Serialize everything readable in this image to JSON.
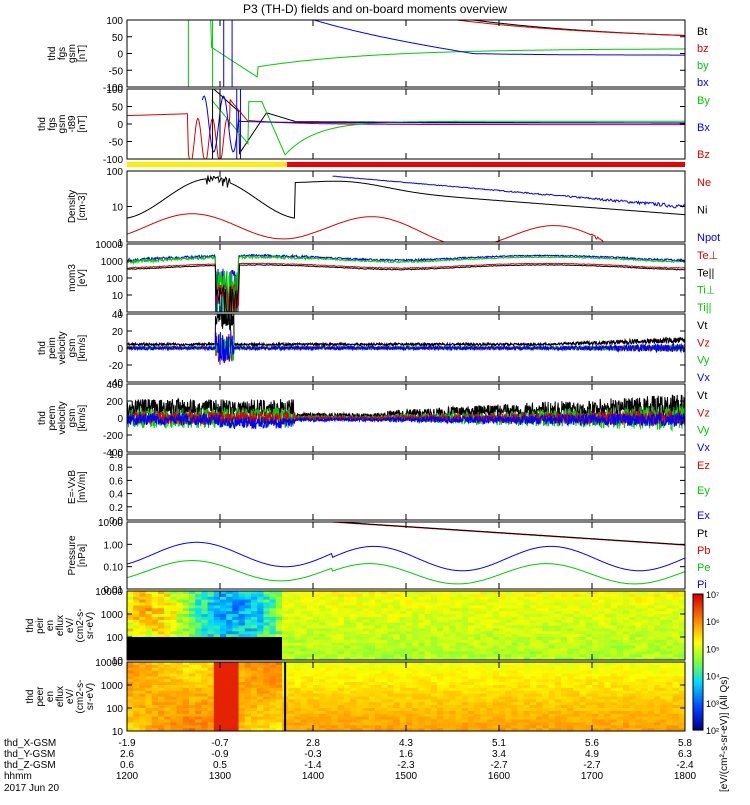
{
  "title": "P3 (TH-D) fields and on-board moments overview",
  "colors": {
    "black": "#000000",
    "red": "#dd0000",
    "green": "#00cc00",
    "blue": "#0000ff",
    "yellow": "#ffee00",
    "barRed": "#ee0000"
  },
  "chart_data": [
    {
      "type": "line",
      "id": "fgs_gsm",
      "ylabel": [
        "thd",
        "fgs",
        "gsm",
        "[nT]"
      ],
      "yticks": [
        "100",
        "50",
        "0",
        "-50",
        "-100"
      ],
      "ylim": [
        -100,
        100
      ],
      "legend": [
        {
          "text": "Bt",
          "color": "black"
        },
        {
          "text": "bz",
          "color": "red"
        },
        {
          "text": "by",
          "color": "green"
        },
        {
          "text": "bx",
          "color": "blue"
        }
      ]
    },
    {
      "type": "line",
      "id": "fgs_gsm_t89",
      "ylabel": [
        "thd",
        "fgs",
        "gsm",
        "-t89",
        "[nT]"
      ],
      "yticks": [
        "100",
        "50",
        "0",
        "-50",
        "-100"
      ],
      "ylim": [
        -125,
        125
      ],
      "legend": [
        {
          "text": "By",
          "color": "green"
        },
        {
          "text": "Bx",
          "color": "blue"
        },
        {
          "text": "Bz",
          "color": "red"
        }
      ]
    },
    {
      "type": "line",
      "id": "density",
      "ylabel": [
        "Density",
        "[cm-3]"
      ],
      "yticks": [
        "100",
        "10",
        "1"
      ],
      "ylim": [
        0.3,
        200
      ],
      "log": true,
      "legend": [
        {
          "text": "Ne",
          "color": "red"
        },
        {
          "text": "Ni",
          "color": "black"
        },
        {
          "text": "Npot",
          "color": "blue"
        }
      ]
    },
    {
      "type": "line",
      "id": "temp",
      "ylabel": [
        "mom3",
        "[eV]"
      ],
      "yticks": [
        "10000",
        "1000",
        "100",
        "10",
        "1"
      ],
      "ylim": [
        1,
        10000
      ],
      "log": true,
      "legend": [
        {
          "text": "Te⊥",
          "color": "red"
        },
        {
          "text": "Te||",
          "color": "black"
        },
        {
          "text": "Ti⊥",
          "color": "green"
        },
        {
          "text": "Ti||",
          "color": "green"
        }
      ]
    },
    {
      "type": "line",
      "id": "peim_velocity",
      "ylabel": [
        "thd",
        "peim",
        "velocity",
        "gsm",
        "[km/s]"
      ],
      "yticks": [
        "40",
        "20",
        "0",
        "-20",
        "-40"
      ],
      "ylim": [
        -40,
        40
      ],
      "legend": [
        {
          "text": "Vt",
          "color": "black"
        },
        {
          "text": "Vz",
          "color": "red"
        },
        {
          "text": "Vy",
          "color": "green"
        },
        {
          "text": "Vx",
          "color": "blue"
        }
      ]
    },
    {
      "type": "line",
      "id": "peem_velocity",
      "ylabel": [
        "thd",
        "peem",
        "velocity",
        "gsm",
        "[km/s]"
      ],
      "yticks": [
        "400",
        "200",
        "0",
        "-200",
        "-400"
      ],
      "ylim": [
        -400,
        400
      ],
      "legend": [
        {
          "text": "Vt",
          "color": "black"
        },
        {
          "text": "Vz",
          "color": "red"
        },
        {
          "text": "Vy",
          "color": "green"
        },
        {
          "text": "Vx",
          "color": "blue"
        }
      ]
    },
    {
      "type": "line",
      "id": "efield",
      "ylabel": [
        "E=-VxB",
        "[mV/m]"
      ],
      "yticks": [
        "1.0",
        "0.8",
        "0.6",
        "0.4",
        "0.2",
        "0.0"
      ],
      "ylim": [
        0,
        1
      ],
      "legend": [
        {
          "text": "Ez",
          "color": "red"
        },
        {
          "text": "Ey",
          "color": "green"
        },
        {
          "text": "Ex",
          "color": "blue"
        }
      ]
    },
    {
      "type": "line",
      "id": "pressure",
      "ylabel": [
        "Pressure",
        "[nPa]"
      ],
      "yticks": [
        "10.00",
        "1.00",
        "0.10",
        "0.01"
      ],
      "ylim": [
        0.01,
        20
      ],
      "log": true,
      "legend": [
        {
          "text": "Pt",
          "color": "black"
        },
        {
          "text": "Pb",
          "color": "red"
        },
        {
          "text": "Pe",
          "color": "green"
        },
        {
          "text": "Pi",
          "color": "blue"
        }
      ]
    },
    {
      "type": "heatmap",
      "id": "peir_en",
      "ylabel": [
        "thd",
        "peir",
        "en",
        "eflux",
        "eV/",
        "(cm2-s-",
        "sr-eV)"
      ],
      "yticks": [
        "10000",
        "1000",
        "100",
        "10"
      ]
    },
    {
      "type": "heatmap",
      "id": "peer_en",
      "ylabel": [
        "thd",
        "peer",
        "en",
        "eflux",
        "eV/",
        "(cm2-s-",
        "sr-eV)"
      ],
      "yticks": [
        "10000",
        "1000",
        "100",
        "10"
      ]
    }
  ],
  "colorbar": {
    "ticks": [
      "10⁷",
      "10⁶",
      "10⁵",
      "10⁴",
      "10³",
      "10²"
    ],
    "label": "[eV/(cm²-s-sr-eV)] (All Qs)"
  },
  "xaxis": {
    "rows": [
      {
        "label": "thd_X-GSM",
        "values": [
          "-1.9",
          "-0.7",
          "2.8",
          "4.3",
          "5.1",
          "5.6",
          "5.8"
        ]
      },
      {
        "label": "thd_Y-GSM",
        "values": [
          "2.6",
          "-0.9",
          "-0.3",
          "1.6",
          "3.4",
          "4.9",
          "6.3"
        ]
      },
      {
        "label": "thd_Z-GSM",
        "values": [
          "0.6",
          "0.5",
          "-1.4",
          "-2.3",
          "-2.7",
          "-2.7",
          "-2.4"
        ]
      },
      {
        "label": "hhmm",
        "values": [
          "1200",
          "1300",
          "1400",
          "1500",
          "1600",
          "1700",
          "1800"
        ]
      }
    ],
    "date": "2017 Jun 20"
  }
}
